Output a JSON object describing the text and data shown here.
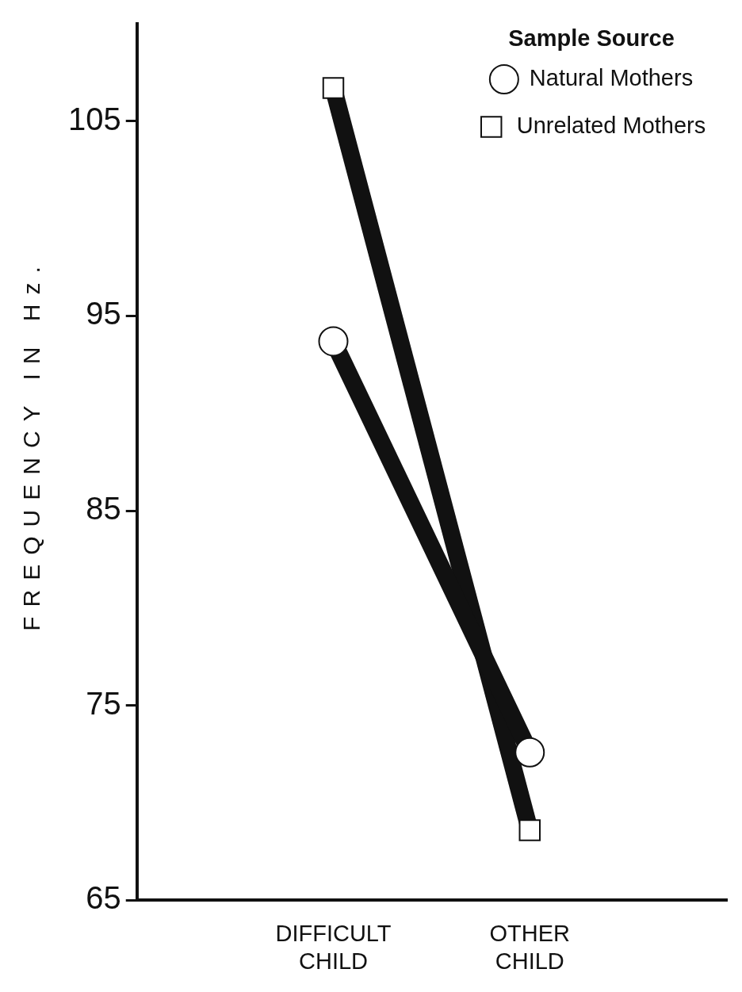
{
  "chart_data": {
    "type": "line",
    "ylabel": "FREQUENCY IN Hz.",
    "legend_title": "Sample Source",
    "legend": "top right",
    "grid": false,
    "categories": [
      "DIFFICULT CHILD",
      "OTHER CHILD"
    ],
    "ylim": [
      65,
      110
    ],
    "yticks": [
      65,
      75,
      85,
      95,
      105
    ],
    "series": [
      {
        "name": "Natural Mothers",
        "color": "#111111",
        "marker": "circle",
        "values": [
          93.7,
          72.6
        ]
      },
      {
        "name": "Unrelated Mothers",
        "color": "#111111",
        "marker": "square",
        "values": [
          106.7,
          68.6
        ]
      }
    ]
  }
}
